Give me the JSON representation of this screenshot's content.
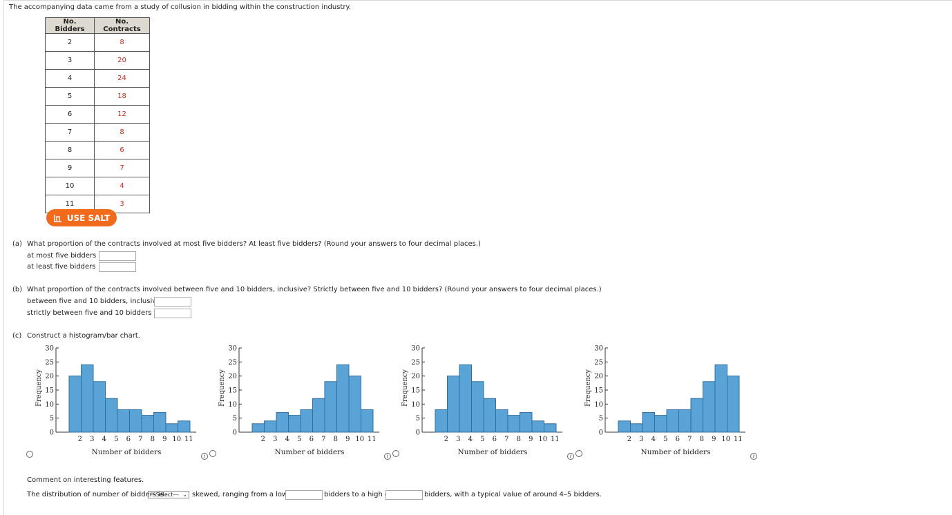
{
  "intro": "The accompanying data came from a study of collusion in bidding within the construction industry.",
  "table": {
    "headers": [
      "No. Bidders",
      "No. Contracts"
    ],
    "rows": [
      [
        "2",
        "8"
      ],
      [
        "3",
        "20"
      ],
      [
        "4",
        "24"
      ],
      [
        "5",
        "18"
      ],
      [
        "6",
        "12"
      ],
      [
        "7",
        "8"
      ],
      [
        "8",
        "6"
      ],
      [
        "9",
        "7"
      ],
      [
        "10",
        "4"
      ],
      [
        "11",
        "3"
      ]
    ]
  },
  "salt_button": "USE SALT",
  "part_a": {
    "label": "(a)",
    "question": "What proportion of the contracts involved at most five bidders? At least five bidders? (Round your answers to four decimal places.)",
    "sub1": "at most five bidders",
    "sub2": "at least five bidders"
  },
  "part_b": {
    "label": "(b)",
    "question": "What proportion of the contracts involved between five and 10 bidders, inclusive? Strictly between five and 10 bidders? (Round your answers to four decimal places.)",
    "sub1": "between five and 10 bidders, inclusive",
    "sub2": "strictly between five and 10 bidders"
  },
  "part_c": {
    "label": "(c)",
    "question": "Construct a histogram/bar chart."
  },
  "comment": {
    "heading": "Comment on interesting features.",
    "prefix": "The distribution of number of bidders is",
    "select_value": "---Select---",
    "mid1": "skewed, ranging from a low of",
    "mid2": "bidders to a high of",
    "suffix": "bidders, with a typical value of around 4–5 bidders."
  },
  "chart_data": [
    {
      "type": "bar",
      "categories": [
        "2",
        "3",
        "4",
        "5",
        "6",
        "7",
        "8",
        "9",
        "10",
        "11"
      ],
      "values": [
        20,
        24,
        18,
        12,
        8,
        8,
        6,
        7,
        3,
        4
      ],
      "xlabel": "Number of bidders",
      "ylabel": "Frequency",
      "ylim": [
        0,
        30
      ],
      "yticks": [
        0,
        5,
        10,
        15,
        20,
        25,
        30
      ]
    },
    {
      "type": "bar",
      "categories": [
        "2",
        "3",
        "4",
        "5",
        "6",
        "7",
        "8",
        "9",
        "10",
        "11"
      ],
      "values": [
        3,
        4,
        7,
        6,
        8,
        12,
        18,
        24,
        20,
        8
      ],
      "xlabel": "Number of bidders",
      "ylabel": "Frequency",
      "ylim": [
        0,
        30
      ],
      "yticks": [
        0,
        5,
        10,
        15,
        20,
        25,
        30
      ]
    },
    {
      "type": "bar",
      "categories": [
        "2",
        "3",
        "4",
        "5",
        "6",
        "7",
        "8",
        "9",
        "10",
        "11"
      ],
      "values": [
        8,
        20,
        24,
        18,
        12,
        8,
        6,
        7,
        4,
        3
      ],
      "xlabel": "Number of bidders",
      "ylabel": "Frequency",
      "ylim": [
        0,
        30
      ],
      "yticks": [
        0,
        5,
        10,
        15,
        20,
        25,
        30
      ]
    },
    {
      "type": "bar",
      "categories": [
        "2",
        "3",
        "4",
        "5",
        "6",
        "7",
        "8",
        "9",
        "10",
        "11"
      ],
      "values": [
        4,
        3,
        7,
        6,
        8,
        8,
        12,
        18,
        24,
        20
      ],
      "xlabel": "Number of bidders",
      "ylabel": "Frequency",
      "ylim": [
        0,
        30
      ],
      "yticks": [
        0,
        5,
        10,
        15,
        20,
        25,
        30
      ]
    }
  ],
  "colors": {
    "bar_fill": "#5aa3d6",
    "bar_stroke": "#2f6fa0",
    "salt": "#f26a1b",
    "value_red": "#cc2a1a"
  }
}
